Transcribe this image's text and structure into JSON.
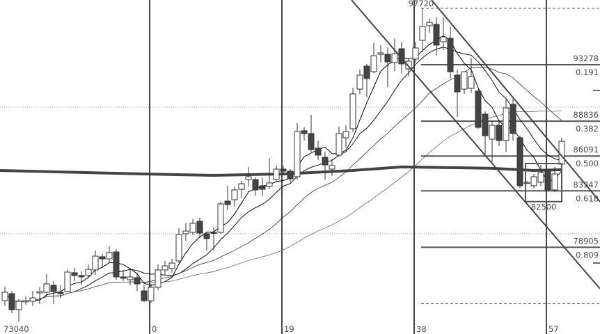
{
  "chart_data": {
    "type": "candlestick",
    "first_bar_index": -21,
    "ylim": [
      73800,
      97940
    ],
    "grid": "dotted horizontal",
    "colors": {
      "down_body": "#444444",
      "up_body": "#ffffff",
      "outline": "#333333",
      "lines": "#4a4a4a",
      "text": "#4a4a4a"
    },
    "candles_ohlc": [
      [
        74700,
        75800,
        74270,
        75360
      ],
      [
        75250,
        75470,
        73720,
        73990
      ],
      [
        73990,
        74810,
        73040,
        74650
      ],
      [
        74600,
        75030,
        74380,
        74700
      ],
      [
        74650,
        75470,
        74270,
        74920
      ],
      [
        75310,
        75750,
        74430,
        75420
      ],
      [
        75360,
        76790,
        75090,
        76020
      ],
      [
        75910,
        76240,
        74430,
        75420
      ],
      [
        75360,
        75910,
        74920,
        75250
      ],
      [
        75420,
        77120,
        75360,
        76950
      ],
      [
        76900,
        77280,
        76240,
        76680
      ],
      [
        76680,
        77010,
        75910,
        76570
      ],
      [
        76680,
        77550,
        76460,
        77170
      ],
      [
        77120,
        78650,
        76730,
        78210
      ],
      [
        78160,
        78380,
        77280,
        77990
      ],
      [
        77990,
        78980,
        77660,
        78490
      ],
      [
        78540,
        78760,
        76350,
        76570
      ],
      [
        76570,
        77120,
        76240,
        76460
      ],
      [
        76350,
        77170,
        75910,
        76570
      ],
      [
        76510,
        76900,
        75470,
        76020
      ],
      [
        75470,
        75910,
        74600,
        74700
      ],
      [
        74700,
        76020,
        74540,
        75750
      ],
      [
        75750,
        77550,
        75530,
        77120
      ],
      [
        77120,
        77830,
        76730,
        77440
      ],
      [
        77230,
        77990,
        76900,
        77660
      ],
      [
        77830,
        80400,
        77660,
        79910
      ],
      [
        79970,
        80840,
        79420,
        80180
      ],
      [
        80080,
        81120,
        79860,
        80790
      ],
      [
        80950,
        81230,
        79640,
        80020
      ],
      [
        79970,
        80130,
        78650,
        79580
      ],
      [
        80080,
        80460,
        78650,
        80020
      ],
      [
        80080,
        82490,
        79970,
        82320
      ],
      [
        82540,
        83750,
        81830,
        82270
      ],
      [
        82650,
        83690,
        82100,
        83420
      ],
      [
        83470,
        84130,
        82760,
        83910
      ],
      [
        84240,
        85230,
        83690,
        84460
      ],
      [
        84240,
        84400,
        82980,
        83420
      ],
      [
        83750,
        84400,
        82920,
        83470
      ],
      [
        83690,
        85940,
        83470,
        83970
      ],
      [
        84240,
        85340,
        84020,
        85060
      ],
      [
        85060,
        85340,
        84570,
        84900
      ],
      [
        84900,
        85060,
        84020,
        84290
      ],
      [
        84460,
        88680,
        84240,
        88020
      ],
      [
        88080,
        88350,
        87310,
        87860
      ],
      [
        87860,
        89340,
        86430,
        86600
      ],
      [
        86710,
        87310,
        85770,
        86160
      ],
      [
        85990,
        86430,
        84240,
        85390
      ],
      [
        85060,
        85880,
        84510,
        85340
      ],
      [
        86160,
        88400,
        86050,
        87860
      ],
      [
        87530,
        88510,
        86760,
        88020
      ],
      [
        88240,
        91470,
        87970,
        90980
      ],
      [
        91360,
        92900,
        90980,
        92460
      ],
      [
        93170,
        93340,
        90710,
        92190
      ],
      [
        92730,
        94980,
        92620,
        93990
      ],
      [
        94100,
        94820,
        93450,
        94210
      ],
      [
        94100,
        94650,
        91530,
        93500
      ],
      [
        93450,
        95360,
        92790,
        94160
      ],
      [
        94540,
        95090,
        92620,
        93340
      ],
      [
        92950,
        93720,
        92350,
        93560
      ],
      [
        93720,
        95090,
        93450,
        94600
      ],
      [
        95200,
        97720,
        94270,
        96300
      ],
      [
        96350,
        96900,
        95800,
        96620
      ],
      [
        96460,
        97010,
        93990,
        94820
      ],
      [
        95090,
        97010,
        94430,
        95470
      ],
      [
        95360,
        96300,
        92190,
        92730
      ],
      [
        92460,
        92900,
        89170,
        91140
      ],
      [
        91360,
        92620,
        90980,
        92730
      ],
      [
        91420,
        93830,
        91090,
        92350
      ],
      [
        91200,
        91360,
        88240,
        88350
      ],
      [
        89390,
        89610,
        86050,
        87690
      ],
      [
        87420,
        88790,
        85610,
        88510
      ],
      [
        88510,
        88950,
        86870,
        87310
      ],
      [
        87310,
        90540,
        86430,
        89880
      ],
      [
        90160,
        90600,
        87310,
        87860
      ],
      [
        87530,
        87690,
        83580,
        83750
      ],
      [
        84020,
        84130,
        83910,
        84020
      ],
      [
        83750,
        84680,
        83580,
        84460
      ],
      [
        84020,
        85390,
        83750,
        84790
      ],
      [
        85010,
        85060,
        83420,
        83420
      ],
      [
        83420,
        85230,
        83250,
        84680
      ],
      [
        85450,
        87530,
        85390,
        87250
      ]
    ],
    "moving_average_periods": [
      5,
      10,
      20,
      40
    ],
    "long_average_line": [
      [
        -21,
        84950
      ],
      [
        -1,
        84680
      ],
      [
        9,
        84570
      ],
      [
        19,
        84680
      ],
      [
        29,
        84950
      ],
      [
        36,
        85230
      ],
      [
        44,
        85170
      ],
      [
        49,
        85120
      ],
      [
        55,
        84950
      ],
      [
        59,
        85010
      ]
    ],
    "vertical_markers": [
      {
        "bar": 0,
        "label": "0"
      },
      {
        "bar": 19,
        "label": "19"
      },
      {
        "bar": 38,
        "label": "38"
      },
      {
        "bar": 57,
        "label": "57"
      }
    ],
    "low_label": {
      "bar": -21,
      "price": 73040,
      "label": "73040"
    },
    "high_label": {
      "bar": 39,
      "price": 97720,
      "label": "97720"
    },
    "fib_levels": [
      {
        "price": 93278,
        "label": "93278",
        "ratio": "0.191"
      },
      {
        "price": 88836,
        "label": "88836",
        "ratio": "0.382"
      },
      {
        "price": 86091,
        "label": "86091",
        "ratio": "0.500"
      },
      {
        "price": 83347,
        "label": "83347",
        "ratio": "0.618"
      },
      {
        "price": 78905,
        "label": "78905",
        "ratio": "0.809"
      }
    ],
    "fib_start_bar": 39,
    "dashed_levels": [
      97720,
      74460
    ],
    "dotted_gridlines": [
      89940,
      79970
    ],
    "channel_lines": [
      {
        "from": [
          28.8,
          98378
        ],
        "to": [
          64.5,
          75636
        ]
      },
      {
        "from": [
          40.3,
          98378
        ],
        "to": [
          64.5,
          82486
        ]
      }
    ],
    "box": {
      "from_bar": 54,
      "to_bar": 59,
      "top": 85500,
      "bottom": 82500,
      "label": "82500"
    }
  }
}
